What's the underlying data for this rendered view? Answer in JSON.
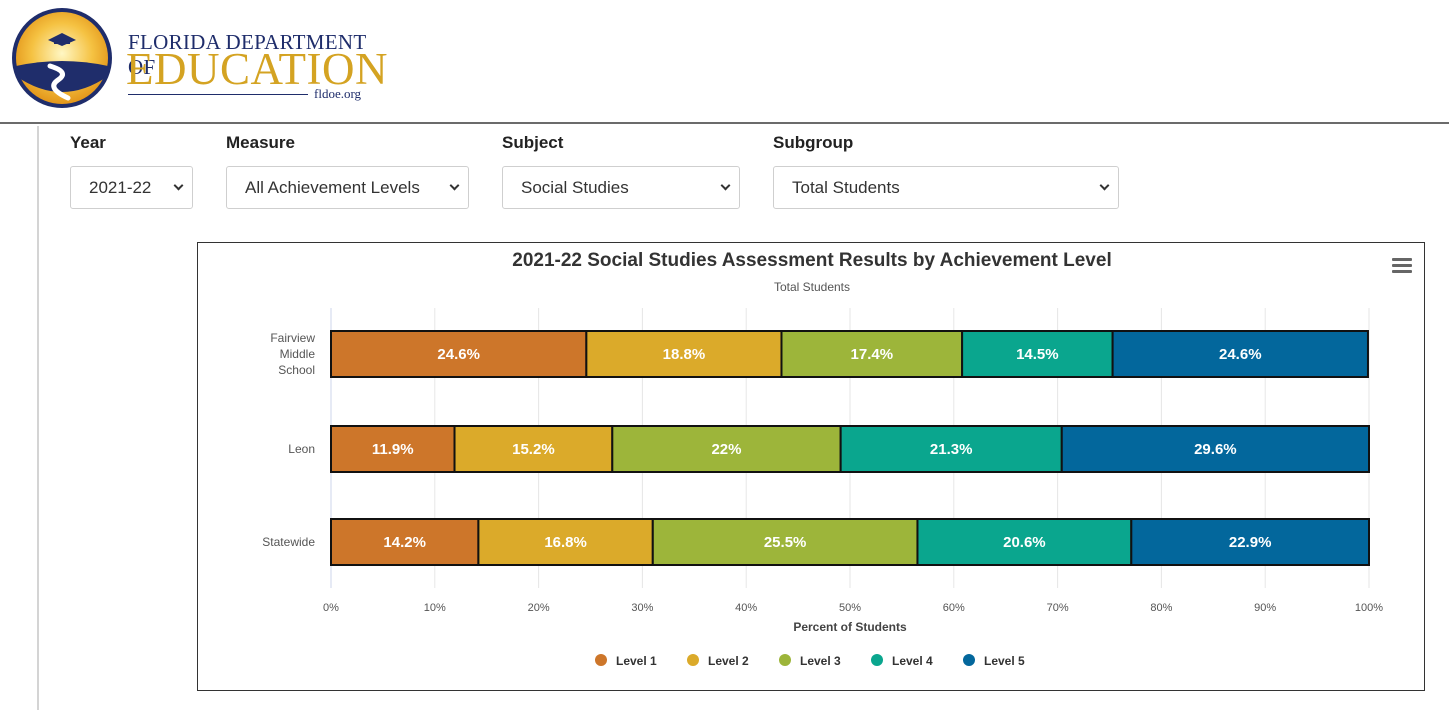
{
  "header": {
    "logo_line1": "FLORIDA DEPARTMENT OF",
    "logo_line2": "EDUCATION",
    "logo_url": "fldoe.org"
  },
  "filters": {
    "year": {
      "label": "Year",
      "value": "2021-22"
    },
    "measure": {
      "label": "Measure",
      "value": "All Achievement Levels"
    },
    "subject": {
      "label": "Subject",
      "value": "Social Studies"
    },
    "subgroup": {
      "label": "Subgroup",
      "value": "Total Students"
    }
  },
  "chart": {
    "menu_icon": "hamburger-menu-icon"
  },
  "chart_data": {
    "type": "bar",
    "orientation": "horizontal",
    "stacked": true,
    "title": "2021-22 Social Studies Assessment Results by Achievement Level",
    "subtitle": "Total Students",
    "xlabel": "Percent of Students",
    "ylabel": "",
    "xlim": [
      0,
      100
    ],
    "x_ticks": [
      "0%",
      "10%",
      "20%",
      "30%",
      "40%",
      "50%",
      "60%",
      "70%",
      "80%",
      "90%",
      "100%"
    ],
    "categories": [
      "Fairview Middle School",
      "Leon",
      "Statewide"
    ],
    "category_lines": [
      [
        "Fairview",
        "Middle",
        "School"
      ],
      [
        "Leon"
      ],
      [
        "Statewide"
      ]
    ],
    "series": [
      {
        "name": "Level 1",
        "color": "#cd762a",
        "values": [
          24.6,
          11.9,
          14.2
        ]
      },
      {
        "name": "Level 2",
        "color": "#dbaa2a",
        "values": [
          18.8,
          15.2,
          16.8
        ]
      },
      {
        "name": "Level 3",
        "color": "#9db53a",
        "values": [
          17.4,
          22,
          25.5
        ]
      },
      {
        "name": "Level 4",
        "color": "#0aa68e",
        "values": [
          14.5,
          21.3,
          20.6
        ]
      },
      {
        "name": "Level 5",
        "color": "#03679c",
        "values": [
          24.6,
          29.6,
          22.9
        ]
      }
    ],
    "grid": true,
    "legend_position": "bottom"
  }
}
